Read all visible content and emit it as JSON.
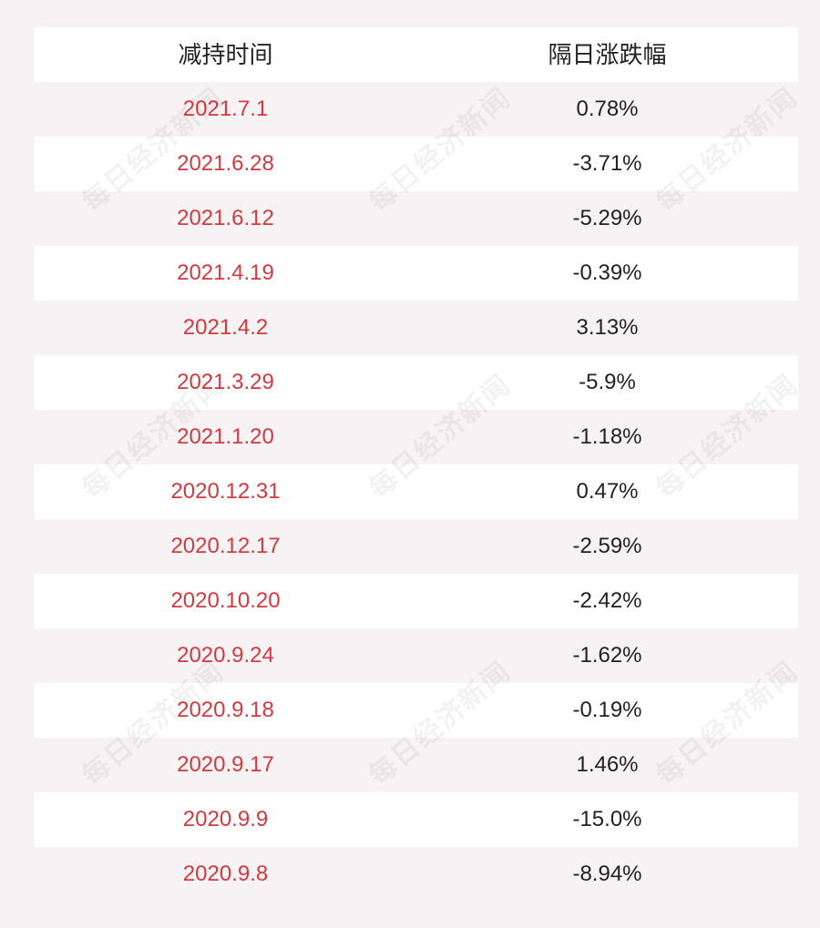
{
  "header": {
    "col_date": "减持时间",
    "col_change": "隔日涨跌幅"
  },
  "rows": [
    {
      "date": "2021.7.1",
      "change": "0.78%"
    },
    {
      "date": "2021.6.28",
      "change": "-3.71%"
    },
    {
      "date": "2021.6.12",
      "change": "-5.29%"
    },
    {
      "date": "2021.4.19",
      "change": "-0.39%"
    },
    {
      "date": "2021.4.2",
      "change": "3.13%"
    },
    {
      "date": "2021.3.29",
      "change": "-5.9%"
    },
    {
      "date": "2021.1.20",
      "change": "-1.18%"
    },
    {
      "date": "2020.12.31",
      "change": "0.47%"
    },
    {
      "date": "2020.12.17",
      "change": "-2.59%"
    },
    {
      "date": "2020.10.20",
      "change": "-2.42%"
    },
    {
      "date": "2020.9.24",
      "change": "-1.62%"
    },
    {
      "date": "2020.9.18",
      "change": "-0.19%"
    },
    {
      "date": "2020.9.17",
      "change": "1.46%"
    },
    {
      "date": "2020.9.9",
      "change": "-15.0%"
    },
    {
      "date": "2020.9.8",
      "change": "-8.94%"
    }
  ],
  "watermark": "每日经济新闻",
  "colors": {
    "date_text": "#d23a3f",
    "value_text": "#222222",
    "row_light": "#ffffff",
    "row_tint": "#f7f2f3"
  }
}
